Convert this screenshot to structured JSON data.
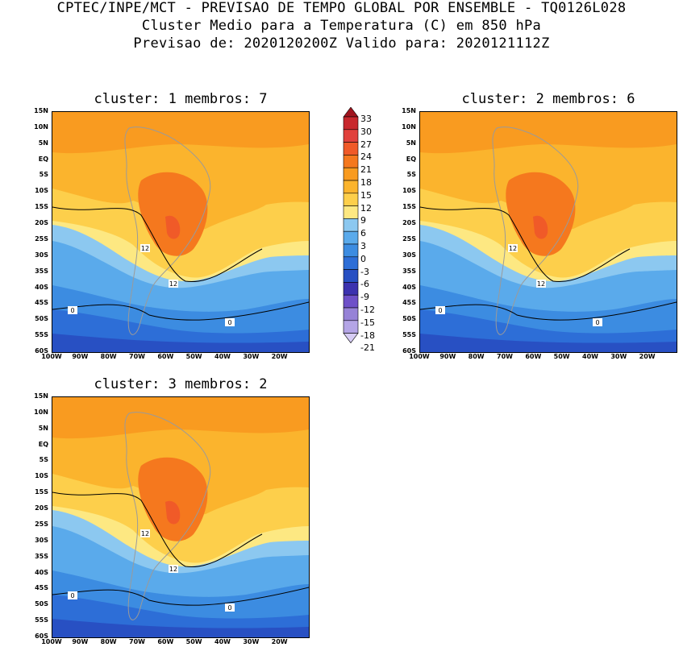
{
  "header": {
    "line1": "CPTEC/INPE/MCT - PREVISAO DE TEMPO GLOBAL POR ENSEMBLE - TQ0126L028",
    "line2": "Cluster Medio para a Temperatura (C) em 850 hPa",
    "line3": "Previsao de: 2020120200Z   Valido para: 2020121112Z"
  },
  "panels": [
    {
      "title": "cluster: 1  membros: 7",
      "contour_labels": [
        "12",
        "12",
        "0",
        "0"
      ]
    },
    {
      "title": "cluster: 2  membros: 6",
      "contour_labels": [
        "12",
        "12",
        "0",
        "0"
      ]
    },
    {
      "title": "cluster: 3  membros: 2",
      "contour_labels": [
        "12",
        "12",
        "0",
        "0"
      ]
    }
  ],
  "lat_ticks": [
    "15N",
    "10N",
    "5N",
    "EQ",
    "5S",
    "10S",
    "15S",
    "20S",
    "25S",
    "30S",
    "35S",
    "40S",
    "45S",
    "50S",
    "55S",
    "60S"
  ],
  "lon_ticks": [
    "100W",
    "90W",
    "80W",
    "70W",
    "60W",
    "50W",
    "40W",
    "30W",
    "20W"
  ],
  "colorbar": {
    "labels": [
      "33",
      "30",
      "27",
      "24",
      "21",
      "18",
      "15",
      "12",
      "9",
      "6",
      "3",
      "0",
      "-3",
      "-6",
      "-9",
      "-12",
      "-15",
      "-18",
      "-21"
    ],
    "colors": [
      "#a0141e",
      "#c8282d",
      "#e1413c",
      "#f05a28",
      "#f5781e",
      "#f99b20",
      "#fbb42d",
      "#fdcf4b",
      "#fde882",
      "#8cc8f0",
      "#5aaaeb",
      "#3c8ce1",
      "#2d6ed7",
      "#2850c3",
      "#3c32af",
      "#6e50c8",
      "#9682d7",
      "#b4a5e6",
      "#d7cdf5"
    ]
  }
}
